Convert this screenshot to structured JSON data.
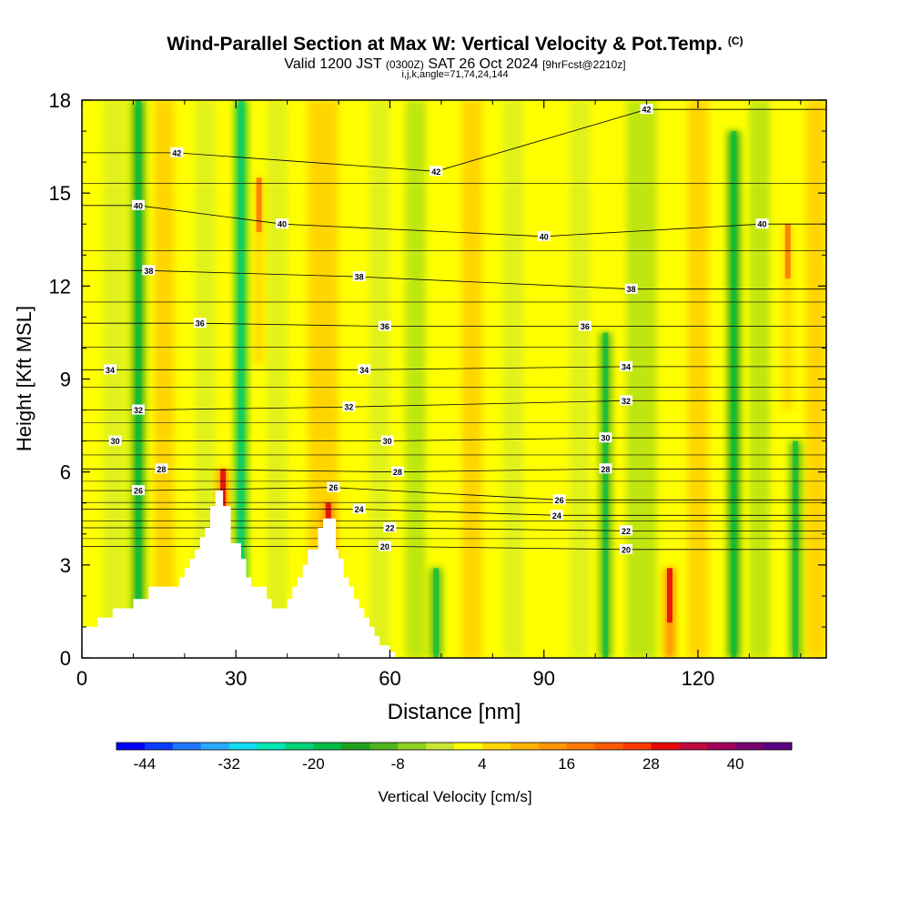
{
  "chart_data": {
    "type": "heatmap",
    "title": "Wind-Parallel Section at Max W: Vertical Velocity & Pot.Temp.",
    "title_mark": "(C)",
    "subtitle": {
      "valid_prefix": "Valid 1200 JST",
      "utc": "(0300Z)",
      "date": "SAT 26 Oct 2024",
      "forecast": "[9hrFcst@2210z]"
    },
    "subtitle2": "i,j,k,angle=71,74,24,144",
    "xlabel": "Distance [nm]",
    "ylabel": "Height [Kft MSL]",
    "xlim": [
      0,
      145
    ],
    "ylim": [
      0,
      18
    ],
    "x_ticks": [
      "0",
      "30",
      "60",
      "90",
      "120"
    ],
    "y_ticks": [
      "0",
      "3",
      "6",
      "9",
      "12",
      "15",
      "18"
    ],
    "colorbar": {
      "label": "Vertical Velocity [cm/s]",
      "tick_labels": [
        "-44",
        "-32",
        "-20",
        "-8",
        "4",
        "16",
        "28",
        "40"
      ],
      "colors": [
        "#0000ff",
        "#0a3cff",
        "#1e78ff",
        "#28aaff",
        "#14dcf0",
        "#00e6b4",
        "#00d278",
        "#00be46",
        "#1ea01e",
        "#50b41e",
        "#8cd21e",
        "#c8e632",
        "#ffff00",
        "#ffd700",
        "#ffb400",
        "#ff9600",
        "#ff7800",
        "#ff5a00",
        "#ff3c00",
        "#e60a0a",
        "#be0a3c",
        "#a0005a",
        "#78006e",
        "#5a0082"
      ]
    },
    "contour_field": "Potential Temperature",
    "contour_levels": [
      20,
      22,
      24,
      26,
      28,
      30,
      32,
      34,
      36,
      38,
      40,
      42
    ],
    "contour_labels": [
      {
        "text": "42",
        "x": 18.5,
        "y": 16.3
      },
      {
        "text": "42",
        "x": 69.0,
        "y": 15.7
      },
      {
        "text": "42",
        "x": 110.0,
        "y": 17.7
      },
      {
        "text": "40",
        "x": 11.0,
        "y": 14.6
      },
      {
        "text": "40",
        "x": 39.0,
        "y": 14.0
      },
      {
        "text": "40",
        "x": 90.0,
        "y": 13.6
      },
      {
        "text": "40",
        "x": 132.5,
        "y": 14.0
      },
      {
        "text": "38",
        "x": 13.0,
        "y": 12.5
      },
      {
        "text": "38",
        "x": 54.0,
        "y": 12.3
      },
      {
        "text": "38",
        "x": 107.0,
        "y": 11.9
      },
      {
        "text": "36",
        "x": 23.0,
        "y": 10.8
      },
      {
        "text": "36",
        "x": 59.0,
        "y": 10.7
      },
      {
        "text": "36",
        "x": 98.0,
        "y": 10.7
      },
      {
        "text": "34",
        "x": 5.5,
        "y": 9.3
      },
      {
        "text": "34",
        "x": 55.0,
        "y": 9.3
      },
      {
        "text": "34",
        "x": 106.0,
        "y": 9.4
      },
      {
        "text": "32",
        "x": 11.0,
        "y": 8.0
      },
      {
        "text": "32",
        "x": 52.0,
        "y": 8.1
      },
      {
        "text": "32",
        "x": 106.0,
        "y": 8.3
      },
      {
        "text": "30",
        "x": 6.5,
        "y": 7.0
      },
      {
        "text": "30",
        "x": 59.5,
        "y": 7.0
      },
      {
        "text": "30",
        "x": 102.0,
        "y": 7.1
      },
      {
        "text": "28",
        "x": 15.5,
        "y": 6.1
      },
      {
        "text": "28",
        "x": 61.5,
        "y": 6.0
      },
      {
        "text": "28",
        "x": 102.0,
        "y": 6.1
      },
      {
        "text": "26",
        "x": 11.0,
        "y": 5.4
      },
      {
        "text": "26",
        "x": 49.0,
        "y": 5.5
      },
      {
        "text": "26",
        "x": 93.0,
        "y": 5.1
      },
      {
        "text": "24",
        "x": 54.0,
        "y": 4.8
      },
      {
        "text": "24",
        "x": 92.5,
        "y": 4.6
      },
      {
        "text": "22",
        "x": 60.0,
        "y": 4.2
      },
      {
        "text": "22",
        "x": 106.0,
        "y": 4.1
      },
      {
        "text": "20",
        "x": 59.0,
        "y": 3.6
      },
      {
        "text": "20",
        "x": 106.0,
        "y": 3.5
      }
    ],
    "terrain_profile": [
      [
        0,
        1.0
      ],
      [
        3,
        1.0
      ],
      [
        3,
        1.3
      ],
      [
        6,
        1.3
      ],
      [
        6,
        1.6
      ],
      [
        10,
        1.6
      ],
      [
        10,
        1.9
      ],
      [
        13,
        1.9
      ],
      [
        13,
        2.3
      ],
      [
        19,
        2.3
      ],
      [
        19,
        2.6
      ],
      [
        20,
        2.6
      ],
      [
        20,
        2.9
      ],
      [
        21,
        2.9
      ],
      [
        21,
        3.2
      ],
      [
        22,
        3.2
      ],
      [
        22,
        3.5
      ],
      [
        23,
        3.5
      ],
      [
        23,
        3.9
      ],
      [
        24,
        3.9
      ],
      [
        24,
        4.2
      ],
      [
        25,
        4.2
      ],
      [
        25,
        4.9
      ],
      [
        26,
        4.9
      ],
      [
        26,
        5.4
      ],
      [
        27.5,
        5.4
      ],
      [
        27.5,
        4.9
      ],
      [
        29,
        4.9
      ],
      [
        29,
        3.7
      ],
      [
        31,
        3.7
      ],
      [
        31,
        3.2
      ],
      [
        32,
        3.2
      ],
      [
        32,
        2.6
      ],
      [
        33,
        2.6
      ],
      [
        33,
        2.3
      ],
      [
        36,
        2.3
      ],
      [
        36,
        1.9
      ],
      [
        37,
        1.9
      ],
      [
        37,
        1.6
      ],
      [
        40,
        1.6
      ],
      [
        40,
        1.9
      ],
      [
        41,
        1.9
      ],
      [
        41,
        2.3
      ],
      [
        42,
        2.3
      ],
      [
        42,
        2.6
      ],
      [
        43,
        2.6
      ],
      [
        43,
        3.0
      ],
      [
        44,
        3.0
      ],
      [
        44,
        3.5
      ],
      [
        46,
        3.5
      ],
      [
        46,
        4.2
      ],
      [
        47,
        4.2
      ],
      [
        47,
        4.5
      ],
      [
        49.5,
        4.5
      ],
      [
        49.5,
        3.5
      ],
      [
        50,
        3.5
      ],
      [
        50,
        3.2
      ],
      [
        51,
        3.2
      ],
      [
        51,
        2.6
      ],
      [
        52,
        2.6
      ],
      [
        52,
        2.3
      ],
      [
        53,
        2.3
      ],
      [
        53,
        1.9
      ],
      [
        54,
        1.9
      ],
      [
        54,
        1.6
      ],
      [
        55,
        1.6
      ],
      [
        55,
        1.3
      ],
      [
        56,
        1.3
      ],
      [
        56,
        1.0
      ],
      [
        57,
        1.0
      ],
      [
        57,
        0.7
      ],
      [
        58,
        0.7
      ],
      [
        58,
        0.4
      ],
      [
        60,
        0.4
      ],
      [
        60,
        0.2
      ],
      [
        61,
        0.2
      ],
      [
        61,
        0.0
      ]
    ],
    "updraft_columns": [
      {
        "x": 114.5,
        "y_top": 2.9,
        "value": 28
      },
      {
        "x": 48.0,
        "y_top": 5.0,
        "value": 28
      },
      {
        "x": 27.5,
        "y_top": 6.1,
        "value": 28
      },
      {
        "x": 34.5,
        "y_top": 15.5,
        "value": 16
      },
      {
        "x": 137.5,
        "y_top": 14.0,
        "value": 16
      }
    ],
    "downdraft_columns": [
      {
        "x": 11.0,
        "y_top": 18.0,
        "value": -14
      },
      {
        "x": 31.0,
        "y_top": 18.0,
        "value": -18
      },
      {
        "x": 69.0,
        "y_top": 2.9,
        "value": -12
      },
      {
        "x": 102.0,
        "y_top": 10.5,
        "value": -12
      },
      {
        "x": 127.0,
        "y_top": 17.0,
        "value": -14
      },
      {
        "x": 139.0,
        "y_top": 7.0,
        "value": -12
      }
    ]
  }
}
